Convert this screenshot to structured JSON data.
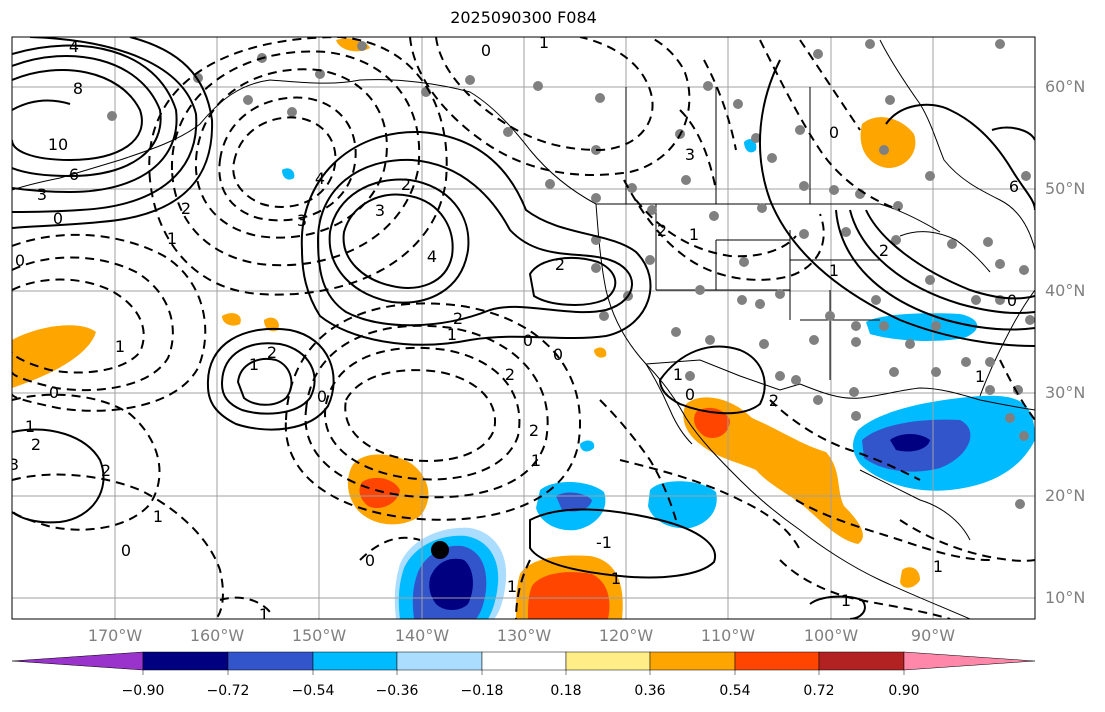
{
  "title": "2025090300 F084",
  "lat_labels": [
    "60°N",
    "50°N",
    "40°N",
    "30°N",
    "20°N",
    "10°N"
  ],
  "lon_labels": [
    "170°W",
    "160°W",
    "150°W",
    "140°W",
    "130°W",
    "120°W",
    "110°W",
    "100°W",
    "90°W"
  ],
  "contour_labels": [
    "4",
    "8",
    "10",
    "6",
    "3",
    "0",
    "1",
    "2",
    "3",
    "4",
    "2",
    "3",
    "4",
    "2",
    "2",
    "1",
    "0",
    "0",
    "2",
    "2",
    "1",
    "0",
    "1",
    "0",
    "1",
    "2",
    "3",
    "2",
    "1",
    "0",
    "1",
    "0",
    "2",
    "1",
    "-1",
    "1",
    "1",
    "2",
    "1",
    "0",
    "2",
    "1",
    "0",
    "3",
    "2",
    "1",
    "6",
    "0",
    "1",
    "1",
    "1",
    "0",
    "0",
    "1"
  ],
  "colorbar": {
    "ticks": [
      "−0.90",
      "−0.72",
      "−0.54",
      "−0.36",
      "−0.18",
      "0.18",
      "0.36",
      "0.54",
      "0.72",
      "0.90"
    ],
    "colors": [
      "#9933cc",
      "#000080",
      "#3355cc",
      "#00bbff",
      "#aaddff",
      "#ffffff",
      "#ffee88",
      "#ffa500",
      "#ff4500",
      "#b22222",
      "#ff88aa"
    ]
  },
  "colors": {
    "solid_contour": "#000000",
    "grid": "#a0a0a0",
    "station": "#808080",
    "border": "#000000"
  }
}
